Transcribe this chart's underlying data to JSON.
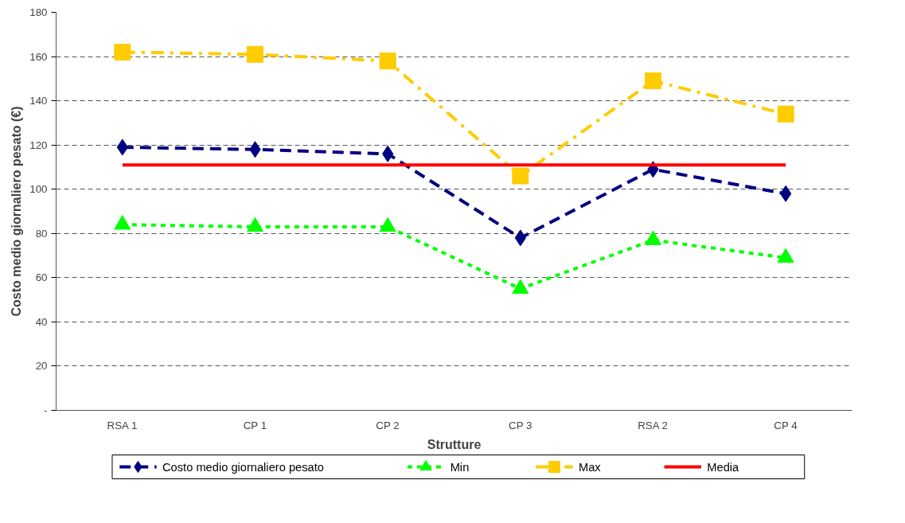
{
  "chart_data": {
    "type": "line",
    "xlabel": "Strutture",
    "ylabel": "Costo medio giornaliero pesato (€)",
    "categories": [
      "RSA 1",
      "CP 1",
      "CP 2",
      "CP 3",
      "RSA 2",
      "CP 4"
    ],
    "ylim": [
      0,
      180
    ],
    "yticks": [
      {
        "value": 0,
        "label": "-"
      },
      20,
      40,
      60,
      80,
      100,
      120,
      140,
      160,
      180
    ],
    "grid": "y",
    "legend": "bottom",
    "series": [
      {
        "name": "Costo medio giornaliero pesato",
        "color": "#000080",
        "marker": "diamond",
        "line_style": "dashed",
        "values": [
          119,
          118,
          116,
          78,
          109,
          98
        ]
      },
      {
        "name": "Min",
        "color": "#00ff00",
        "marker": "triangle",
        "line_style": "dotted",
        "values": [
          84,
          83,
          83,
          55,
          77,
          69
        ]
      },
      {
        "name": "Max",
        "color": "#ffcc00",
        "marker": "square",
        "line_style": "dashdot",
        "values": [
          162,
          161,
          158,
          106,
          149,
          134
        ]
      },
      {
        "name": "Media",
        "color": "#ff0000",
        "marker": "none",
        "line_style": "solid",
        "values": [
          111,
          111,
          111,
          111,
          111,
          111
        ]
      }
    ]
  }
}
